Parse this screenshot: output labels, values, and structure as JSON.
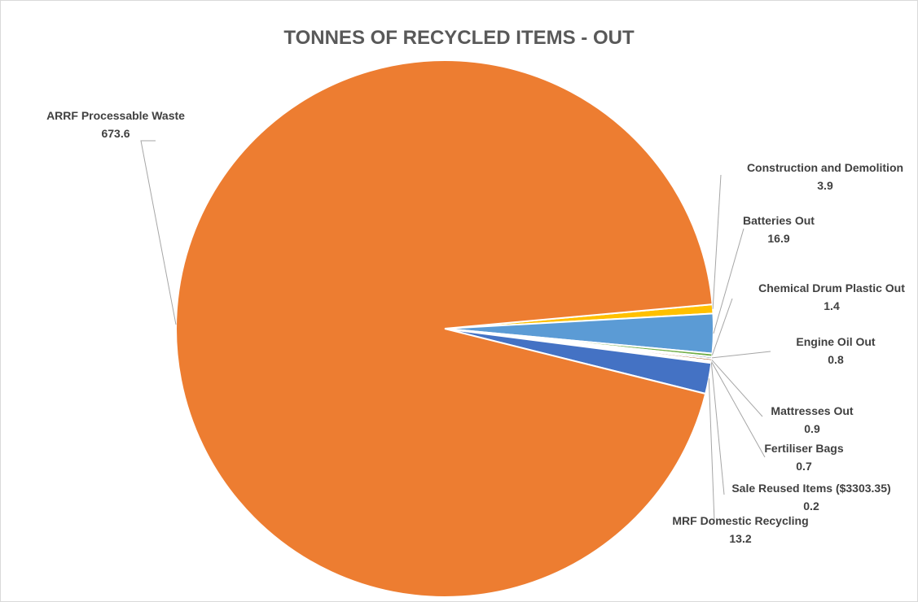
{
  "chart_data": {
    "type": "pie",
    "title": "TONNES OF RECYCLED ITEMS - OUT",
    "legend": "none",
    "slices": [
      {
        "label": "Construction and Demolition",
        "value": 3.9,
        "value_label": "3.9",
        "color": "#ffc000"
      },
      {
        "label": "Batteries Out",
        "value": 16.9,
        "value_label": "16.9",
        "color": "#5b9bd5"
      },
      {
        "label": "Chemical Drum Plastic Out",
        "value": 1.4,
        "value_label": "1.4",
        "color": "#70ad47"
      },
      {
        "label": "Engine Oil Out",
        "value": 0.8,
        "value_label": "0.8",
        "color": "#264478"
      },
      {
        "label": "Mattresses Out",
        "value": 0.9,
        "value_label": "0.9",
        "color": "#9e480e"
      },
      {
        "label": "Fertiliser Bags",
        "value": 0.7,
        "value_label": "0.7",
        "color": "#636363"
      },
      {
        "label": "Sale Reused Items ($3303.35)",
        "value": 0.2,
        "value_label": "0.2",
        "color": "#997300"
      },
      {
        "label": "MRF Domestic Recycling",
        "value": 13.2,
        "value_label": "13.2",
        "color": "#4472c4"
      },
      {
        "label": "ARRF Processable Waste",
        "value": 673.6,
        "value_label": "673.6",
        "color": "#ed7d31"
      }
    ]
  }
}
